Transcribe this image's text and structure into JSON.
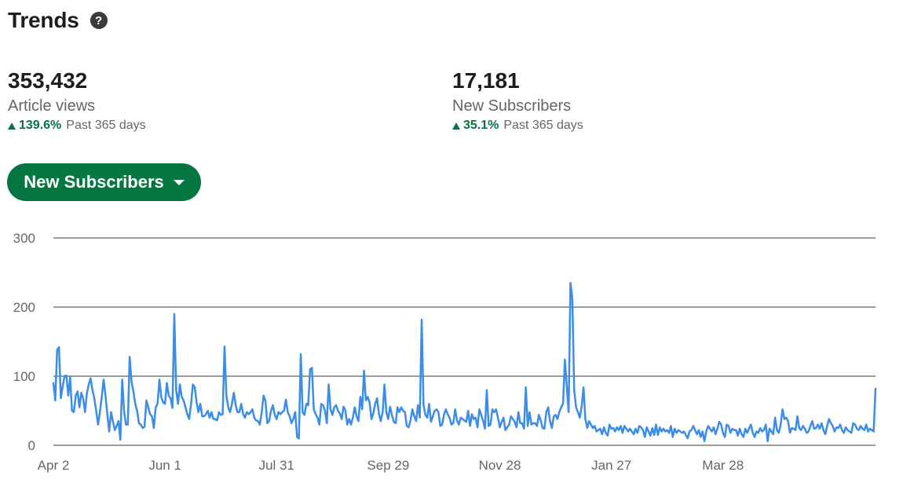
{
  "header": {
    "title": "Trends"
  },
  "stats": [
    {
      "value": "353,432",
      "label": "Article views",
      "change": "139.6%",
      "period": "Past 365 days"
    },
    {
      "value": "17,181",
      "label": "New Subscribers",
      "change": "35.1%",
      "period": "Past 365 days"
    }
  ],
  "metric_selector": {
    "label": "New Subscribers"
  },
  "colors": {
    "accent": "#057642",
    "line": "#3b8de5",
    "grid": "#3a3a3a"
  },
  "chart_data": {
    "type": "line",
    "title": "",
    "xlabel": "",
    "ylabel": "",
    "ylim": [
      0,
      300
    ],
    "yticks": [
      0,
      100,
      200,
      300
    ],
    "xticks": [
      {
        "index": 0,
        "label": "Apr 2"
      },
      {
        "index": 60,
        "label": "Jun 1"
      },
      {
        "index": 120,
        "label": "Jul 31"
      },
      {
        "index": 180,
        "label": "Sep 29"
      },
      {
        "index": 240,
        "label": "Nov 28"
      },
      {
        "index": 300,
        "label": "Jan 27"
      },
      {
        "index": 360,
        "label": "Mar 28"
      }
    ],
    "grid": true,
    "series": [
      {
        "values": [
          90,
          65,
          138,
          142,
          68,
          85,
          100,
          101,
          72,
          98,
          50,
          48,
          72,
          78,
          55,
          76,
          68,
          48,
          75,
          88,
          97,
          80,
          68,
          50,
          30,
          48,
          70,
          95,
          72,
          45,
          20,
          48,
          35,
          22,
          28,
          35,
          8,
          95,
          50,
          30,
          30,
          128,
          92,
          78,
          60,
          50,
          32,
          30,
          25,
          27,
          65,
          55,
          45,
          42,
          25,
          55,
          60,
          95,
          70,
          62,
          60,
          90,
          72,
          68,
          54,
          190,
          80,
          60,
          88,
          70,
          65,
          55,
          45,
          38,
          60,
          88,
          84,
          62,
          48,
          60,
          42,
          42,
          45,
          50,
          40,
          48,
          38,
          38,
          36,
          48,
          44,
          45,
          143,
          72,
          55,
          48,
          60,
          76,
          58,
          48,
          48,
          60,
          45,
          40,
          48,
          45,
          48,
          52,
          40,
          36,
          35,
          30,
          48,
          72,
          64,
          32,
          35,
          50,
          58,
          44,
          38,
          48,
          45,
          48,
          50,
          66,
          48,
          42,
          32,
          38,
          48,
          12,
          10,
          132,
          48,
          44,
          60,
          58,
          110,
          112,
          52,
          45,
          40,
          30,
          60,
          58,
          50,
          32,
          88,
          52,
          44,
          55,
          58,
          50,
          46,
          38,
          56,
          50,
          30,
          38,
          30,
          40,
          55,
          42,
          35,
          70,
          52,
          108,
          65,
          70,
          62,
          38,
          46,
          60,
          68,
          46,
          35,
          48,
          88,
          48,
          38,
          56,
          44,
          34,
          32,
          55,
          48,
          55,
          50,
          48,
          28,
          26,
          36,
          52,
          42,
          35,
          58,
          40,
          182,
          58,
          44,
          40,
          60,
          34,
          42,
          50,
          52,
          48,
          28,
          30,
          44,
          52,
          45,
          40,
          30,
          32,
          52,
          36,
          30,
          40,
          38,
          36,
          34,
          50,
          28,
          45,
          38,
          40,
          26,
          52,
          44,
          36,
          24,
          80,
          28,
          30,
          52,
          48,
          52,
          40,
          26,
          34,
          40,
          22,
          26,
          30,
          42,
          38,
          34,
          26,
          48,
          32,
          32,
          24,
          84,
          28,
          48,
          30,
          32,
          32,
          28,
          44,
          36,
          25,
          24,
          48,
          55,
          35,
          25,
          42,
          44,
          38,
          48,
          55,
          60,
          124,
          86,
          48,
          235,
          212,
          80,
          55,
          48,
          40,
          56,
          84,
          38,
          25,
          35,
          30,
          25,
          28,
          20,
          22,
          24,
          16,
          26,
          18,
          14,
          30,
          24,
          25,
          20,
          26,
          22,
          28,
          18,
          28,
          24,
          20,
          24,
          20,
          16,
          24,
          18,
          28,
          26,
          22,
          12,
          26,
          20,
          14,
          25,
          15,
          30,
          15,
          26,
          20,
          24,
          20,
          22,
          18,
          28,
          12,
          24,
          18,
          22,
          20,
          18,
          20,
          15,
          10,
          20,
          22,
          28,
          22,
          16,
          22,
          12,
          20,
          6,
          20,
          28,
          24,
          20,
          26,
          16,
          24,
          34,
          30,
          18,
          12,
          30,
          28,
          18,
          24,
          22,
          22,
          14,
          24,
          16,
          12,
          24,
          18,
          24,
          30,
          18,
          12,
          20,
          18,
          25,
          20,
          22,
          30,
          6,
          24,
          20,
          16,
          40,
          22,
          18,
          30,
          52,
          38,
          40,
          35,
          18,
          25,
          24,
          22,
          42,
          25,
          22,
          28,
          24,
          18,
          20,
          28,
          35,
          24,
          25,
          30,
          24,
          32,
          22,
          16,
          28,
          38,
          32,
          28,
          20,
          26,
          25,
          30,
          22,
          18,
          26,
          22,
          20,
          18,
          32,
          30,
          24,
          22,
          28,
          24,
          22,
          30,
          20,
          24,
          22,
          20,
          82
        ]
      }
    ]
  }
}
